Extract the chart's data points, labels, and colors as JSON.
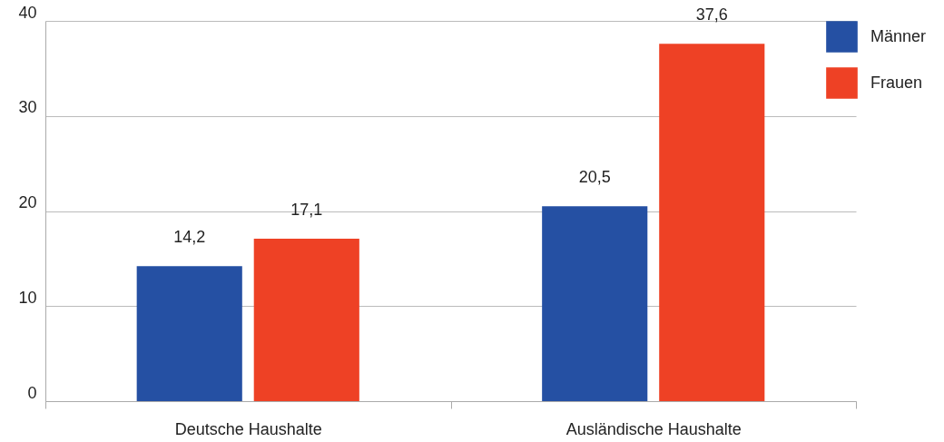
{
  "chart_data": {
    "type": "bar",
    "categories": [
      "Deutsche Haushalte",
      "Ausländische Haushalte"
    ],
    "series": [
      {
        "name": "Männer",
        "color": "#2550a3",
        "values": [
          14.2,
          20.5
        ],
        "value_labels": [
          "14,2",
          "20,5"
        ]
      },
      {
        "name": "Frauen",
        "color": "#ee4125",
        "values": [
          17.1,
          37.6
        ],
        "value_labels": [
          "17,1",
          "37,6"
        ]
      }
    ],
    "ylim": [
      0,
      40
    ],
    "yticks": [
      0,
      10,
      20,
      30,
      40
    ],
    "grid": "y",
    "legend": "top right"
  }
}
